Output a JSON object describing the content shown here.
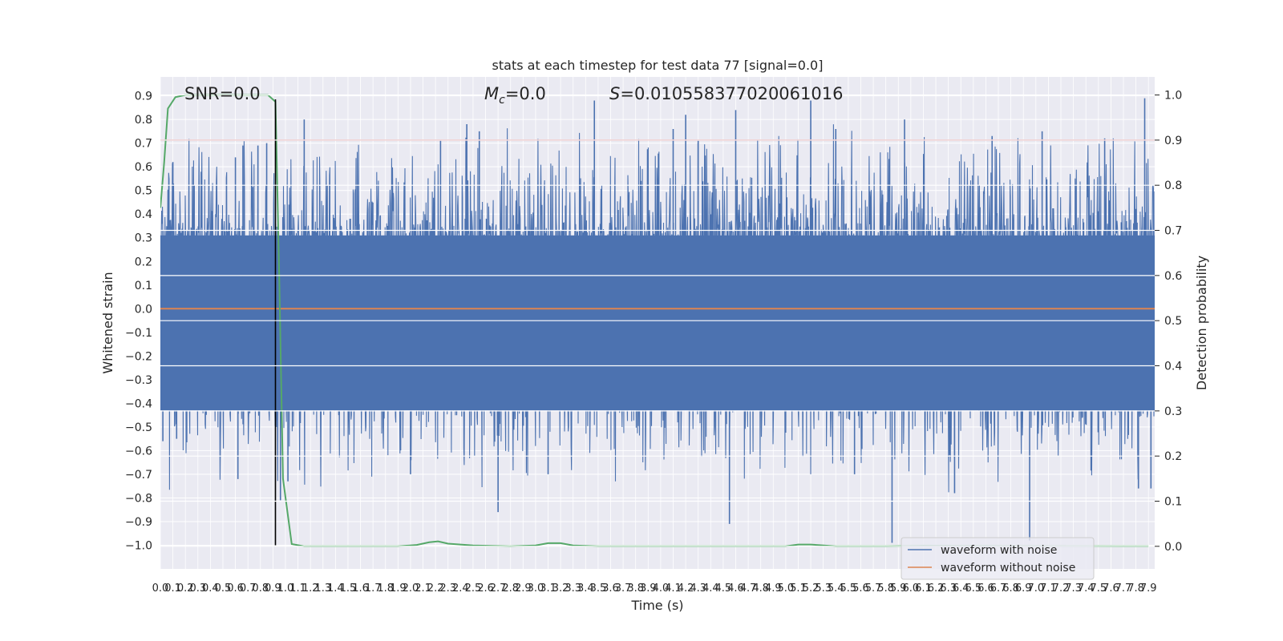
{
  "chart_data": {
    "type": "line",
    "title": "stats at each timestep for test data 77 [signal=0.0]",
    "xlabel": "Time (s)",
    "ylabel": "Whitened strain",
    "y2label": "Detection probability",
    "xlim": [
      0.0,
      7.95
    ],
    "ylim": [
      -1.1,
      0.98
    ],
    "y2lim": [
      -0.05,
      1.04
    ],
    "x_tick_labels": [
      "0.0",
      "0.1",
      "0.2",
      "0.3",
      "0.4",
      "0.5",
      "0.6",
      "0.7",
      "0.8",
      "0.9",
      "1.0",
      "1.1",
      "1.2",
      "1.3",
      "1.4",
      "1.5",
      "1.6",
      "1.7",
      "1.8",
      "1.9",
      "2.0",
      "2.1",
      "2.2",
      "2.3",
      "2.4",
      "2.5",
      "2.6",
      "2.7",
      "2.8",
      "2.9",
      "3.0",
      "3.1",
      "3.2",
      "3.3",
      "3.4",
      "3.5",
      "3.6",
      "3.7",
      "3.8",
      "3.9",
      "4.0",
      "4.1",
      "4.2",
      "4.3",
      "4.4",
      "4.5",
      "4.6",
      "4.7",
      "4.8",
      "4.9",
      "5.0",
      "5.1",
      "5.2",
      "5.3",
      "5.4",
      "5.5",
      "5.6",
      "5.7",
      "5.8",
      "5.9",
      "6.0",
      "6.1",
      "6.2",
      "6.3",
      "6.4",
      "6.5",
      "6.6",
      "6.7",
      "6.8",
      "6.9",
      "7.0",
      "7.1",
      "7.2",
      "7.3",
      "7.4",
      "7.5",
      "7.6",
      "7.7",
      "7.8",
      "7.9"
    ],
    "y_ticks": [
      -1.0,
      -0.9,
      -0.8,
      -0.7,
      -0.6,
      -0.5,
      -0.4,
      -0.3,
      -0.2,
      -0.1,
      0.0,
      0.1,
      0.2,
      0.3,
      0.4,
      0.5,
      0.6,
      0.7,
      0.8,
      0.9
    ],
    "y_tick_labels": [
      "−1.0",
      "−0.9",
      "−0.8",
      "−0.7",
      "−0.6",
      "−0.5",
      "−0.4",
      "−0.3",
      "−0.2",
      "−0.1",
      "0.0",
      "0.1",
      "0.2",
      "0.3",
      "0.4",
      "0.5",
      "0.6",
      "0.7",
      "0.8",
      "0.9"
    ],
    "y2_ticks": [
      0.0,
      0.1,
      0.2,
      0.3,
      0.4,
      0.5,
      0.6,
      0.7,
      0.8,
      0.9,
      1.0
    ],
    "y2_tick_labels": [
      "0.0",
      "0.1",
      "0.2",
      "0.3",
      "0.4",
      "0.5",
      "0.6",
      "0.7",
      "0.8",
      "0.9",
      "1.0"
    ],
    "annotations": {
      "snr": "SNR=0.0",
      "mc_symbol": "M",
      "mc_subscript": "c",
      "mc_value": "=0.0",
      "s_symbol": "S",
      "s_value": "=0.010558377020061016"
    },
    "threshold": {
      "value": 0.9,
      "axis": "y2",
      "color": "#c44e52"
    },
    "vertical_marker": {
      "x": 0.92,
      "color": "#000000"
    },
    "series": [
      {
        "name": "waveform with noise",
        "color": "#4c72b0",
        "kind": "dense-noise",
        "core_range": [
          -0.43,
          0.31
        ],
        "spikes": [
          {
            "x": 0.02,
            "y": -0.56
          },
          {
            "x": 0.05,
            "y": 0.3
          },
          {
            "x": 0.1,
            "y": 0.62
          },
          {
            "x": 0.13,
            "y": -0.55
          },
          {
            "x": 0.6,
            "y": 0.64
          },
          {
            "x": 0.62,
            "y": -0.72
          },
          {
            "x": 0.66,
            "y": 0.69
          },
          {
            "x": 0.78,
            "y": 0.69
          },
          {
            "x": 0.85,
            "y": 0.7
          },
          {
            "x": 0.96,
            "y": -0.81
          },
          {
            "x": 1.02,
            "y": -0.73
          },
          {
            "x": 1.15,
            "y": 0.8
          },
          {
            "x": 2.0,
            "y": -0.7
          },
          {
            "x": 2.24,
            "y": 0.71
          },
          {
            "x": 2.45,
            "y": 0.78
          },
          {
            "x": 2.55,
            "y": 0.75
          },
          {
            "x": 2.7,
            "y": -0.86
          },
          {
            "x": 3.1,
            "y": -0.7
          },
          {
            "x": 3.47,
            "y": 0.88
          },
          {
            "x": 4.1,
            "y": 0.76
          },
          {
            "x": 4.2,
            "y": 0.82
          },
          {
            "x": 4.3,
            "y": 0.71
          },
          {
            "x": 4.55,
            "y": -0.91
          },
          {
            "x": 4.6,
            "y": 0.84
          },
          {
            "x": 5.2,
            "y": 0.88
          },
          {
            "x": 5.4,
            "y": 0.76
          },
          {
            "x": 5.55,
            "y": -0.7
          },
          {
            "x": 5.85,
            "y": -0.99
          },
          {
            "x": 5.95,
            "y": 0.8
          },
          {
            "x": 6.35,
            "y": -0.78
          },
          {
            "x": 6.65,
            "y": 0.73
          },
          {
            "x": 6.95,
            "y": -0.98
          },
          {
            "x": 7.05,
            "y": 0.75
          },
          {
            "x": 7.55,
            "y": 0.72
          },
          {
            "x": 7.82,
            "y": -0.76
          },
          {
            "x": 7.87,
            "y": 0.89
          },
          {
            "x": 7.92,
            "y": -0.76
          }
        ]
      },
      {
        "name": "waveform without noise",
        "color": "#dd8452",
        "x": [
          0.0,
          7.95
        ],
        "y": [
          0.0,
          0.0
        ]
      },
      {
        "name": "detection probability",
        "color": "#55a868",
        "axis": "y2",
        "in_legend": false,
        "x": [
          0.0,
          0.03,
          0.06,
          0.12,
          0.2,
          0.5,
          0.7,
          0.86,
          0.92,
          0.95,
          0.98,
          1.05,
          1.15,
          1.5,
          1.9,
          2.05,
          2.15,
          2.22,
          2.3,
          2.5,
          2.8,
          3.0,
          3.1,
          3.2,
          3.3,
          3.5,
          4.5,
          5.0,
          5.1,
          5.2,
          5.4,
          5.8,
          6.1,
          7.9
        ],
        "y": [
          0.75,
          0.85,
          0.97,
          0.995,
          1.0,
          1.0,
          1.0,
          1.0,
          0.985,
          0.6,
          0.15,
          0.005,
          0.0,
          0.0,
          0.0,
          0.003,
          0.009,
          0.011,
          0.006,
          0.002,
          0.0,
          0.002,
          0.007,
          0.007,
          0.002,
          0.0,
          0.0,
          0.0,
          0.004,
          0.004,
          0.0,
          0.0,
          0.001,
          0.0
        ]
      }
    ]
  },
  "legend": {
    "items": [
      {
        "label": "waveform with noise",
        "color": "#4c72b0"
      },
      {
        "label": "waveform without noise",
        "color": "#dd8452"
      }
    ]
  }
}
